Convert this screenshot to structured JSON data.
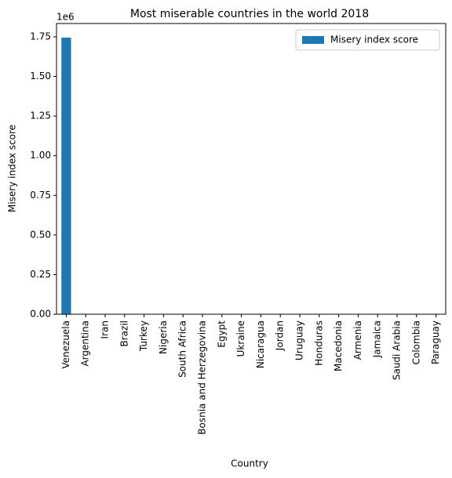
{
  "chart_data": {
    "type": "bar",
    "title": "Most miserable countries in the world 2018",
    "x_label": "Country",
    "y_label": "Misery index score",
    "y_offset_label": "1e6",
    "categories": [
      "Venezuela",
      "Argentina",
      "Iran",
      "Brazil",
      "Turkey",
      "Nigeria",
      "South Africa",
      "Bosnia and Herzegovina",
      "Egypt",
      "Ukraine",
      "Nicaragua",
      "Jordan",
      "Uruguay",
      "Honduras",
      "Macedonia",
      "Armenia",
      "Jamaica",
      "Saudi Arabia",
      "Colombia",
      "Paraguay"
    ],
    "series": [
      {
        "name": "Misery index score",
        "color": "#1f77b4",
        "values": [
          1745000,
          43.8,
          41.2,
          35.6,
          34.8,
          34.3,
          33.8,
          32.6,
          31.2,
          30.4,
          29.9,
          28.4,
          27.5,
          25.9,
          25.6,
          24.8,
          24.5,
          23.9,
          23.5,
          21.9
        ]
      }
    ],
    "ylim": [
      0,
      1834000
    ],
    "yticks": [
      {
        "value": 0,
        "label": "0.00"
      },
      {
        "value": 250000,
        "label": "0.25"
      },
      {
        "value": 500000,
        "label": "0.50"
      },
      {
        "value": 750000,
        "label": "0.75"
      },
      {
        "value": 1000000,
        "label": "1.00"
      },
      {
        "value": 1250000,
        "label": "1.25"
      },
      {
        "value": 1500000,
        "label": "1.50"
      },
      {
        "value": 1750000,
        "label": "1.75"
      }
    ],
    "legend": "upper right",
    "grid": false
  }
}
